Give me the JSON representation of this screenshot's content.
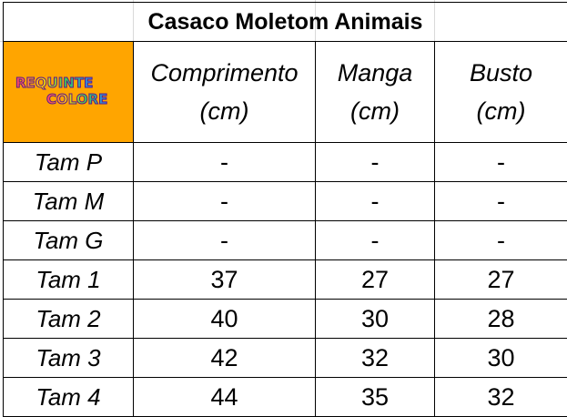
{
  "title": "Casaco Moletom Animais",
  "logo": {
    "line1": "REQUINTE",
    "line2": "COLORE"
  },
  "columns": [
    {
      "line1": "Comprimento",
      "line2": "(cm)"
    },
    {
      "line1": "Manga",
      "line2": "(cm)"
    },
    {
      "line1": "Busto",
      "line2": "(cm)"
    }
  ],
  "rows": [
    {
      "label": "Tam P",
      "values": [
        "-",
        "-",
        "-"
      ]
    },
    {
      "label": "Tam M",
      "values": [
        "-",
        "-",
        "-"
      ]
    },
    {
      "label": "Tam G",
      "values": [
        "-",
        "-",
        "-"
      ]
    },
    {
      "label": "Tam 1",
      "values": [
        "37",
        "27",
        "27"
      ]
    },
    {
      "label": "Tam 2",
      "values": [
        "40",
        "30",
        "28"
      ]
    },
    {
      "label": "Tam 3",
      "values": [
        "42",
        "32",
        "30"
      ]
    },
    {
      "label": "Tam 4",
      "values": [
        "44",
        "35",
        "32"
      ]
    }
  ],
  "colors": {
    "logo_background": "#ffa500",
    "border": "#000000",
    "gridlines": "#d9d9d9"
  }
}
